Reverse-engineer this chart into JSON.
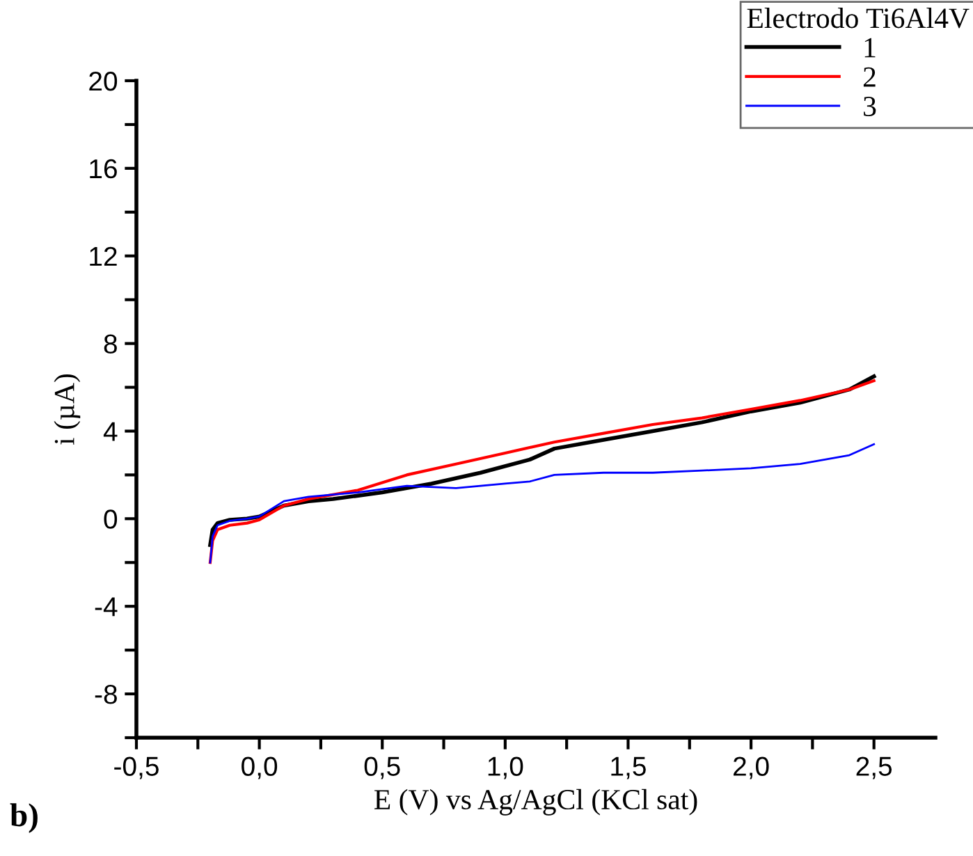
{
  "chart_data": {
    "type": "line",
    "xlabel": "E (V) vs Ag/AgCl (KCl sat)",
    "ylabel": "i (µA)",
    "legend_title": "Electrodo Ti6Al4V",
    "legend": "top right",
    "grid": false,
    "annotations": [
      "b)"
    ],
    "xlim": [
      -0.5,
      2.75
    ],
    "ylim": [
      -10,
      20
    ],
    "xticks": [
      {
        "value": -0.5,
        "label": "-0,5"
      },
      {
        "value": -0.25,
        "label": null
      },
      {
        "value": 0,
        "label": "0,0"
      },
      {
        "value": 0.25,
        "label": null
      },
      {
        "value": 0.5,
        "label": "0,5"
      },
      {
        "value": 0.75,
        "label": null
      },
      {
        "value": 1,
        "label": "1,0"
      },
      {
        "value": 1.25,
        "label": null
      },
      {
        "value": 1.5,
        "label": "1,5"
      },
      {
        "value": 1.75,
        "label": null
      },
      {
        "value": 2,
        "label": "2,0"
      },
      {
        "value": 2.25,
        "label": null
      },
      {
        "value": 2.5,
        "label": "2,5"
      }
    ],
    "yticks": [
      {
        "value": -10,
        "label": null
      },
      {
        "value": -8,
        "label": "-8"
      },
      {
        "value": -6,
        "label": null
      },
      {
        "value": -4,
        "label": "-4"
      },
      {
        "value": -2,
        "label": null
      },
      0,
      {
        "value": 2,
        "label": null
      },
      4,
      {
        "value": 6,
        "label": null
      },
      8,
      {
        "value": 10,
        "label": null
      },
      12,
      {
        "value": 14,
        "label": null
      },
      16,
      {
        "value": 18,
        "label": null
      },
      20
    ],
    "series": [
      {
        "name": "1",
        "color": "#000000",
        "x": [
          -0.2,
          -0.19,
          -0.17,
          -0.12,
          -0.05,
          0.0,
          0.1,
          0.2,
          0.3,
          0.5,
          0.7,
          0.9,
          1.1,
          1.2,
          1.4,
          1.6,
          1.8,
          2.0,
          2.2,
          2.4,
          2.5
        ],
        "values": [
          -1.2,
          -0.5,
          -0.2,
          -0.05,
          0.0,
          0.1,
          0.6,
          0.8,
          0.9,
          1.2,
          1.6,
          2.1,
          2.7,
          3.2,
          3.6,
          4.0,
          4.4,
          4.9,
          5.3,
          5.9,
          6.5
        ]
      },
      {
        "name": "2",
        "color": "#ff0000",
        "x": [
          -0.2,
          -0.19,
          -0.17,
          -0.12,
          -0.05,
          0.0,
          0.1,
          0.2,
          0.4,
          0.6,
          0.8,
          1.0,
          1.2,
          1.4,
          1.6,
          1.8,
          2.0,
          2.2,
          2.4,
          2.5
        ],
        "values": [
          -2.0,
          -1.0,
          -0.5,
          -0.3,
          -0.2,
          -0.05,
          0.6,
          0.9,
          1.3,
          2.0,
          2.5,
          3.0,
          3.5,
          3.9,
          4.3,
          4.6,
          5.0,
          5.4,
          5.9,
          6.3
        ]
      },
      {
        "name": "3",
        "color": "#0000ff",
        "x": [
          -0.2,
          -0.19,
          -0.17,
          -0.12,
          -0.05,
          0.0,
          0.1,
          0.2,
          0.4,
          0.6,
          0.8,
          1.0,
          1.1,
          1.2,
          1.4,
          1.6,
          1.8,
          2.0,
          2.2,
          2.4,
          2.5
        ],
        "values": [
          -2.0,
          -0.8,
          -0.3,
          -0.1,
          0.0,
          0.1,
          0.8,
          1.0,
          1.2,
          1.5,
          1.4,
          1.6,
          1.7,
          2.0,
          2.1,
          2.1,
          2.2,
          2.3,
          2.5,
          2.9,
          3.4
        ]
      }
    ]
  }
}
